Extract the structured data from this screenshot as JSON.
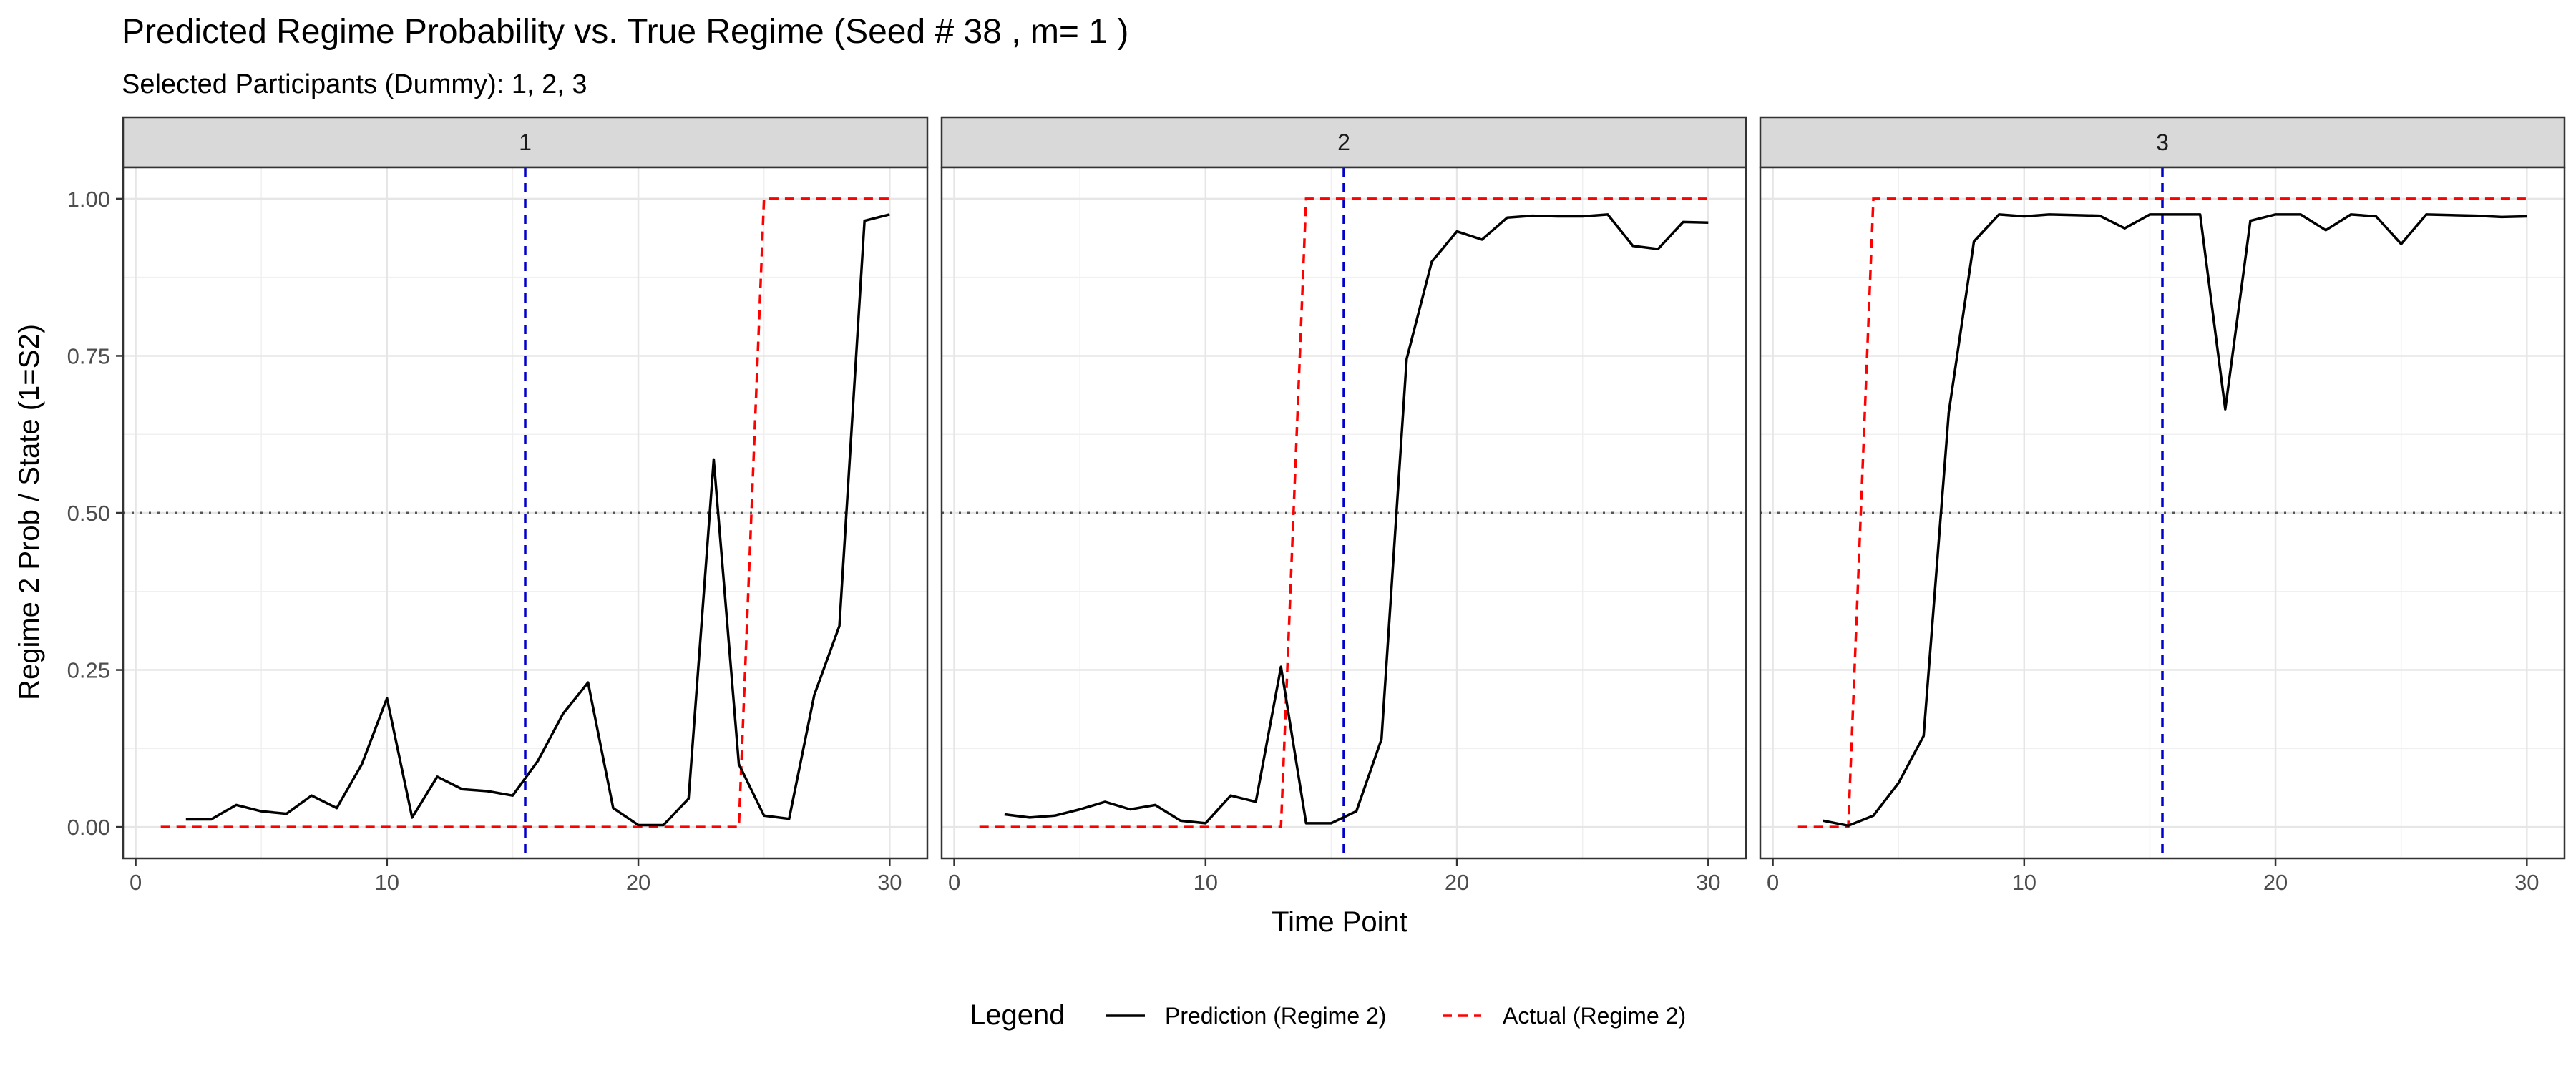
{
  "chart_data": {
    "type": "line",
    "title": "Predicted Regime Probability vs. True Regime (Seed # 38 , m= 1 )",
    "subtitle": "Selected Participants (Dummy): 1, 2, 3",
    "xlabel": "Time Point",
    "ylabel": "Regime 2 Prob / State (1=S2)",
    "xlim": [
      -0.5,
      31.5
    ],
    "ylim": [
      -0.05,
      1.05
    ],
    "x_ticks": [
      0,
      10,
      20,
      30
    ],
    "y_ticks": [
      0.0,
      0.25,
      0.5,
      0.75,
      1.0
    ],
    "y_tick_labels": [
      "0.00",
      "0.25",
      "0.50",
      "0.75",
      "1.00"
    ],
    "grid": true,
    "reference_hline": 0.5,
    "legend_position": "bottom",
    "legend_title": "Legend",
    "legend": [
      {
        "label": "Prediction (Regime 2)",
        "color": "#000000",
        "style": "solid"
      },
      {
        "label": "Actual (Regime 2)",
        "color": "#ff0000",
        "style": "dashed"
      }
    ],
    "colors": {
      "prediction": "#000000",
      "actual": "#ff0000",
      "vline": "#0000cc",
      "hline": "#555555",
      "strip_bg": "#d9d9d9"
    },
    "panels": [
      {
        "label": "1",
        "vline": 15.5,
        "prediction": {
          "x": [
            2,
            3,
            4,
            5,
            6,
            7,
            8,
            9,
            10,
            11,
            12,
            13,
            14,
            15,
            16,
            17,
            18,
            19,
            20,
            21,
            22,
            23,
            24,
            25,
            26,
            27,
            28,
            29,
            30
          ],
          "y": [
            0.012,
            0.012,
            0.035,
            0.025,
            0.021,
            0.05,
            0.03,
            0.1,
            0.205,
            0.015,
            0.08,
            0.06,
            0.057,
            0.05,
            0.105,
            0.18,
            0.23,
            0.03,
            0.003,
            0.003,
            0.045,
            0.585,
            0.1,
            0.018,
            0.013,
            0.21,
            0.32,
            0.965,
            0.975
          ]
        },
        "actual": {
          "x": [
            1,
            24,
            25,
            30
          ],
          "y": [
            0,
            0,
            1,
            1
          ]
        }
      },
      {
        "label": "2",
        "vline": 15.5,
        "prediction": {
          "x": [
            2,
            3,
            4,
            5,
            6,
            7,
            8,
            9,
            10,
            11,
            12,
            13,
            14,
            15,
            16,
            17,
            18,
            19,
            20,
            21,
            22,
            23,
            24,
            25,
            26,
            27,
            28,
            29,
            30
          ],
          "y": [
            0.02,
            0.015,
            0.018,
            0.028,
            0.04,
            0.028,
            0.035,
            0.01,
            0.006,
            0.05,
            0.04,
            0.255,
            0.006,
            0.006,
            0.025,
            0.14,
            0.745,
            0.9,
            0.948,
            0.935,
            0.97,
            0.973,
            0.972,
            0.972,
            0.975,
            0.925,
            0.92,
            0.963,
            0.962
          ]
        },
        "actual": {
          "x": [
            1,
            13,
            14,
            30
          ],
          "y": [
            0,
            0,
            1,
            1
          ]
        }
      },
      {
        "label": "3",
        "vline": 15.5,
        "prediction": {
          "x": [
            2,
            3,
            4,
            5,
            6,
            7,
            8,
            9,
            10,
            11,
            12,
            13,
            14,
            15,
            16,
            17,
            18,
            19,
            20,
            21,
            22,
            23,
            24,
            25,
            26,
            27,
            28,
            29,
            30
          ],
          "y": [
            0.01,
            0.002,
            0.018,
            0.07,
            0.145,
            0.66,
            0.932,
            0.975,
            0.972,
            0.975,
            0.974,
            0.973,
            0.953,
            0.975,
            0.975,
            0.975,
            0.665,
            0.965,
            0.975,
            0.975,
            0.95,
            0.975,
            0.972,
            0.928,
            0.975,
            0.974,
            0.973,
            0.971,
            0.972
          ]
        },
        "actual": {
          "x": [
            1,
            3,
            4,
            30
          ],
          "y": [
            0,
            0,
            1,
            1
          ]
        }
      }
    ]
  }
}
